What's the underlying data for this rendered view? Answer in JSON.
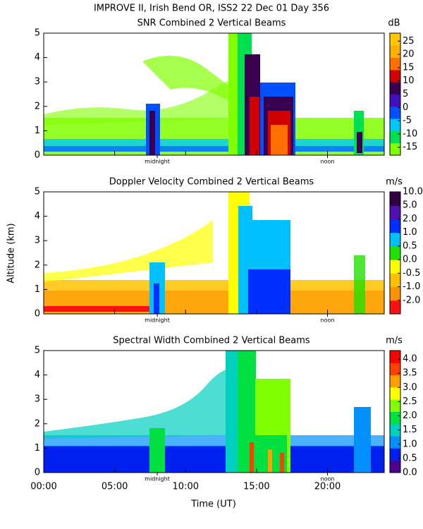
{
  "figure": {
    "title": "IMPROVE II,  Irish Bend OR, ISS2  22 Dec 01 Day 356",
    "x_label": "Time (UT)",
    "y_label": "Altitude (km)",
    "xlim": [
      0,
      24
    ],
    "xticks": [
      {
        "value": 0,
        "label": "00:00"
      },
      {
        "value": 5,
        "label": "05:00"
      },
      {
        "value": 10,
        "label": "10:00"
      },
      {
        "value": 15,
        "label": "15:00"
      },
      {
        "value": 20,
        "label": "20:00"
      }
    ],
    "annotations": [
      {
        "x": 8,
        "label": "midnight"
      },
      {
        "x": 20,
        "label": "noon"
      }
    ]
  },
  "chart_data": [
    {
      "type": "heatmap",
      "title": "SNR Combined 2 Vertical Beams",
      "ylim": [
        0,
        5
      ],
      "yticks": [
        0,
        1,
        2,
        3,
        4,
        5
      ],
      "colorbar": {
        "units": "dB",
        "lim": [
          -18,
          28
        ],
        "ticks": [
          -15,
          -10,
          -5,
          0,
          5,
          10,
          15,
          20,
          25
        ],
        "colors": [
          "#80ff00",
          "#00e050",
          "#00c8ff",
          "#0050ff",
          "#4010c0",
          "#3a0050",
          "#d00000",
          "#ff7000",
          "#ffb000",
          "#ffc800"
        ]
      }
    },
    {
      "type": "heatmap",
      "title": "Doppler Velocity Combined 2 Vertical Beams",
      "ylim": [
        0,
        5
      ],
      "yticks": [
        0,
        1,
        2,
        3,
        4,
        5
      ],
      "colorbar": {
        "units": "m/s",
        "levels": true,
        "ticks": [
          {
            "value": -2,
            "label": "-2.0"
          },
          {
            "value": -1,
            "label": "-1.0"
          },
          {
            "value": -0.5,
            "label": "-0.5"
          },
          {
            "value": 0,
            "label": "0.0"
          },
          {
            "value": 0.5,
            "label": "0.5"
          },
          {
            "value": 1,
            "label": "1.0"
          },
          {
            "value": 2,
            "label": "2.0"
          },
          {
            "value": 5,
            "label": "5.0"
          },
          {
            "value": 10,
            "label": "10.0"
          }
        ],
        "colors": [
          "#ff1010",
          "#ff9000",
          "#ffc000",
          "#ffff00",
          "#20e000",
          "#00c0ff",
          "#0030ff",
          "#5010b0",
          "#300040"
        ]
      }
    },
    {
      "type": "heatmap",
      "title": "Spectral Width Combined 2 Vertical Beams",
      "ylim": [
        0,
        5
      ],
      "yticks": [
        0,
        1,
        2,
        3,
        4,
        5
      ],
      "colorbar": {
        "units": "m/s",
        "lim": [
          0,
          4.3
        ],
        "ticks": [
          {
            "value": 0,
            "label": "0.0"
          },
          {
            "value": 0.5,
            "label": "0.5"
          },
          {
            "value": 1,
            "label": "1.0"
          },
          {
            "value": 1.5,
            "label": "1.5"
          },
          {
            "value": 2,
            "label": "2.0"
          },
          {
            "value": 2.5,
            "label": "2.5"
          },
          {
            "value": 3,
            "label": "3.0"
          },
          {
            "value": 3.5,
            "label": "3.5"
          },
          {
            "value": 4,
            "label": "4.0"
          }
        ],
        "colors": [
          "#500090",
          "#0020f0",
          "#0090ff",
          "#00d0c0",
          "#00e040",
          "#80ff00",
          "#ffff00",
          "#ffa000",
          "#ff4000",
          "#ff0000"
        ]
      }
    }
  ]
}
